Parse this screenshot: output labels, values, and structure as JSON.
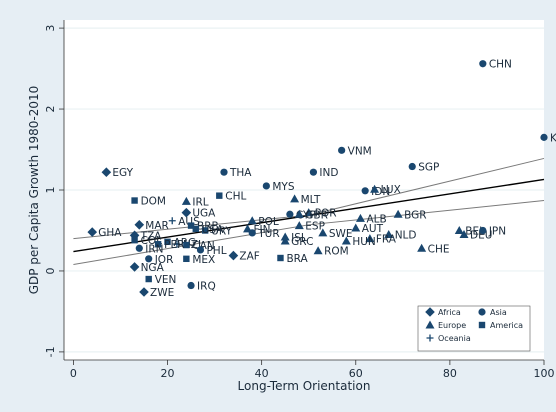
{
  "chart_data": {
    "type": "scatter",
    "title": "",
    "xlabel": "Long-Term Orientation",
    "ylabel": "GDP per Capita Growth 1980-2010",
    "xlim": [
      -2,
      100
    ],
    "ylim": [
      -1.1,
      3.1
    ],
    "xticks": [
      0,
      20,
      40,
      60,
      80,
      100
    ],
    "yticks": [
      -1,
      0,
      1,
      2,
      3
    ],
    "grid": true,
    "legend_position": "bottom-right",
    "colors": {
      "marker": "#1a476f",
      "grid": "#eaf2f3",
      "panel": "#ffffff",
      "background": "#e6eef4",
      "fit": "#000000",
      "ci": "#7a7a7a",
      "text": "#1a2a3a"
    },
    "legend": [
      {
        "label": "Africa",
        "shape": "diamond"
      },
      {
        "label": "Asia",
        "shape": "circle"
      },
      {
        "label": "Europe",
        "shape": "triangle"
      },
      {
        "label": "America",
        "shape": "square"
      },
      {
        "label": "Oceania",
        "shape": "plus"
      }
    ],
    "fit_line": {
      "x": [
        0,
        100
      ],
      "y": [
        0.24,
        1.13
      ]
    },
    "ci_upper": {
      "x": [
        0,
        50,
        100
      ],
      "y": [
        0.4,
        0.69,
        1.39
      ]
    },
    "ci_lower": {
      "x": [
        0,
        50,
        100
      ],
      "y": [
        0.08,
        0.57,
        0.87
      ]
    },
    "points": [
      {
        "label": "CHN",
        "x": 87,
        "y": 2.56,
        "region": "Asia"
      },
      {
        "label": "KOR",
        "x": 100,
        "y": 1.65,
        "region": "Asia"
      },
      {
        "label": "VNM",
        "x": 57,
        "y": 1.49,
        "region": "Asia"
      },
      {
        "label": "SGP",
        "x": 72,
        "y": 1.29,
        "region": "Asia"
      },
      {
        "label": "THA",
        "x": 32,
        "y": 1.22,
        "region": "Asia"
      },
      {
        "label": "IND",
        "x": 51,
        "y": 1.22,
        "region": "Asia"
      },
      {
        "label": "EGY",
        "x": 7,
        "y": 1.22,
        "region": "Africa"
      },
      {
        "label": "MYS",
        "x": 41,
        "y": 1.05,
        "region": "Asia"
      },
      {
        "label": "IDN",
        "x": 62,
        "y": 0.99,
        "region": "Asia"
      },
      {
        "label": "LUX",
        "x": 64,
        "y": 1.01,
        "region": "Europe"
      },
      {
        "label": "CHL",
        "x": 31,
        "y": 0.93,
        "region": "America"
      },
      {
        "label": "DOM",
        "x": 13,
        "y": 0.87,
        "region": "America"
      },
      {
        "label": "IRL",
        "x": 24,
        "y": 0.86,
        "region": "Europe"
      },
      {
        "label": "MLT",
        "x": 47,
        "y": 0.89,
        "region": "Europe"
      },
      {
        "label": "UGA",
        "x": 24,
        "y": 0.72,
        "region": "Africa"
      },
      {
        "label": "POR",
        "x": 50,
        "y": 0.72,
        "region": "Europe"
      },
      {
        "label": "BGR",
        "x": 69,
        "y": 0.7,
        "region": "Europe"
      },
      {
        "label": "CYP",
        "x": 46,
        "y": 0.7,
        "region": "Asia"
      },
      {
        "label": "GBR",
        "x": 48,
        "y": 0.7,
        "region": "Europe"
      },
      {
        "label": "MAR",
        "x": 14,
        "y": 0.57,
        "region": "Africa"
      },
      {
        "label": "AUS",
        "x": 21,
        "y": 0.62,
        "region": "Oceania"
      },
      {
        "label": "ALB",
        "x": 61,
        "y": 0.65,
        "region": "Europe"
      },
      {
        "label": "POL",
        "x": 38,
        "y": 0.62,
        "region": "Europe"
      },
      {
        "label": "BRB",
        "x": 25,
        "y": 0.56,
        "region": "America"
      },
      {
        "label": "ESP",
        "x": 48,
        "y": 0.56,
        "region": "Europe"
      },
      {
        "label": "AUT",
        "x": 60,
        "y": 0.53,
        "region": "Europe"
      },
      {
        "label": "GHA",
        "x": 4,
        "y": 0.48,
        "region": "Africa"
      },
      {
        "label": "TZA",
        "x": 13,
        "y": 0.44,
        "region": "Africa"
      },
      {
        "label": "URY",
        "x": 28,
        "y": 0.5,
        "region": "America"
      },
      {
        "label": "FIN",
        "x": 37,
        "y": 0.52,
        "region": "Europe"
      },
      {
        "label": "SWE",
        "x": 53,
        "y": 0.47,
        "region": "Europe"
      },
      {
        "label": "ISL",
        "x": 45,
        "y": 0.42,
        "region": "Europe"
      },
      {
        "label": "GRC",
        "x": 45,
        "y": 0.37,
        "region": "Europe"
      },
      {
        "label": "NLD",
        "x": 67,
        "y": 0.45,
        "region": "Europe"
      },
      {
        "label": "FRA",
        "x": 63,
        "y": 0.4,
        "region": "Europe"
      },
      {
        "label": "BEL",
        "x": 82,
        "y": 0.5,
        "region": "Europe"
      },
      {
        "label": "DEU",
        "x": 83,
        "y": 0.45,
        "region": "Europe"
      },
      {
        "label": "JPN",
        "x": 87,
        "y": 0.5,
        "region": "Asia"
      },
      {
        "label": "COL",
        "x": 13,
        "y": 0.38,
        "region": "America"
      },
      {
        "label": "ARG",
        "x": 20,
        "y": 0.36,
        "region": "America"
      },
      {
        "label": "NZL",
        "x": 22,
        "y": 0.33,
        "region": "Oceania"
      },
      {
        "label": "CAN",
        "x": 24,
        "y": 0.32,
        "region": "America"
      },
      {
        "label": "TUR",
        "x": 38,
        "y": 0.47,
        "region": "Asia"
      },
      {
        "label": "USA",
        "x": 26,
        "y": 0.52,
        "region": "America"
      },
      {
        "label": "PER",
        "x": 18,
        "y": 0.33,
        "region": "America"
      },
      {
        "label": "BRA",
        "x": 44,
        "y": 0.16,
        "region": "America"
      },
      {
        "label": "ROM",
        "x": 52,
        "y": 0.25,
        "region": "Europe"
      },
      {
        "label": "CHE",
        "x": 74,
        "y": 0.28,
        "region": "Europe"
      },
      {
        "label": "HUN",
        "x": 58,
        "y": 0.37,
        "region": "Europe"
      },
      {
        "label": "IRN",
        "x": 14,
        "y": 0.28,
        "region": "Asia"
      },
      {
        "label": "JOR",
        "x": 16,
        "y": 0.15,
        "region": "Asia"
      },
      {
        "label": "PHL",
        "x": 27,
        "y": 0.26,
        "region": "Asia"
      },
      {
        "label": "ZAF",
        "x": 34,
        "y": 0.19,
        "region": "Africa"
      },
      {
        "label": "MEX",
        "x": 24,
        "y": 0.15,
        "region": "America"
      },
      {
        "label": "NGA",
        "x": 13,
        "y": 0.05,
        "region": "Africa"
      },
      {
        "label": "VEN",
        "x": 16,
        "y": -0.1,
        "region": "America"
      },
      {
        "label": "ZWE",
        "x": 15,
        "y": -0.26,
        "region": "Africa"
      },
      {
        "label": "IRQ",
        "x": 25,
        "y": -0.18,
        "region": "Asia"
      }
    ]
  }
}
